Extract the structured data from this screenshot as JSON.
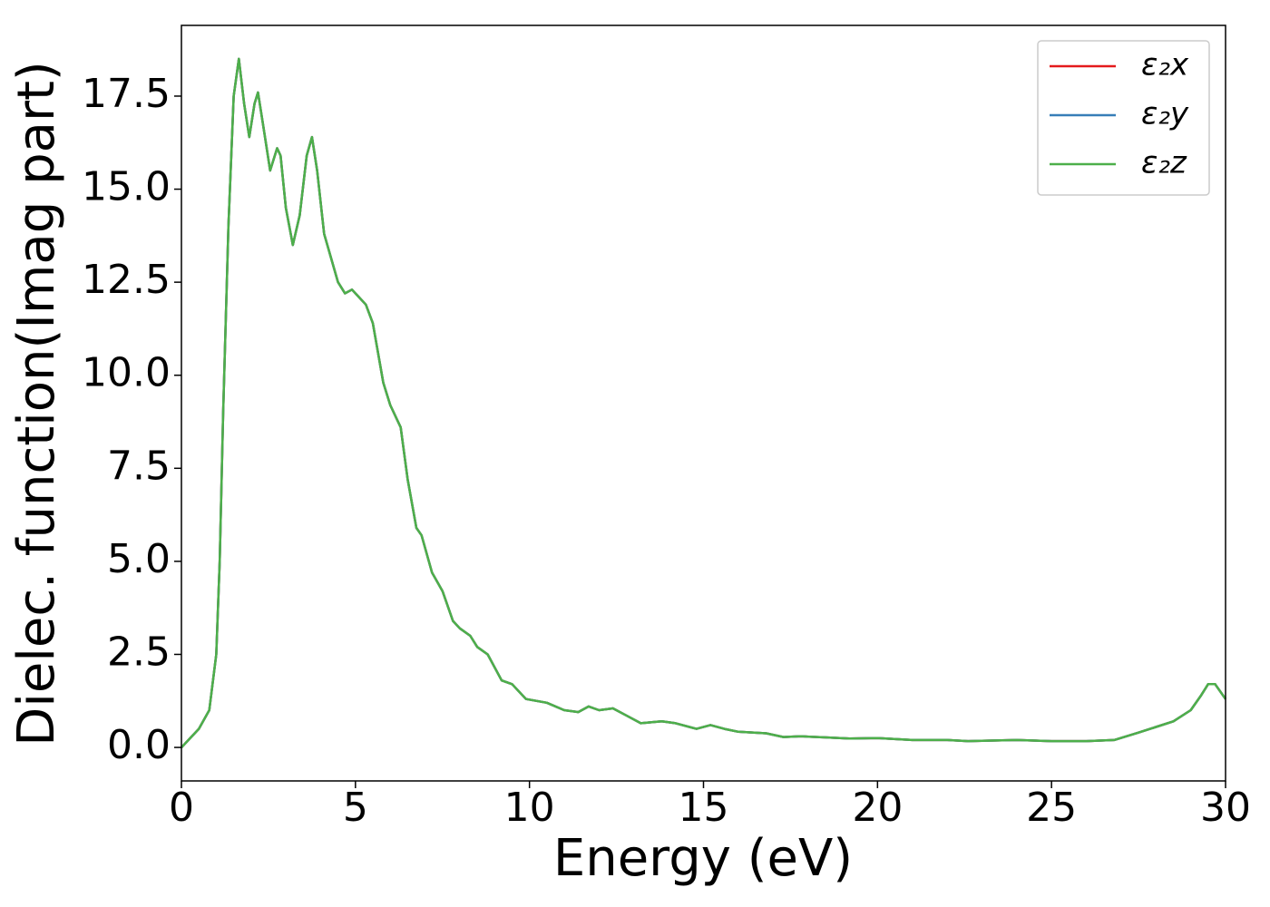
{
  "chart_data": {
    "type": "line",
    "xlabel": "Energy (eV)",
    "ylabel": "Dielec. function(Imag part)",
    "x": [
      0,
      0.5,
      0.8,
      1.0,
      1.1,
      1.2,
      1.35,
      1.5,
      1.65,
      1.8,
      1.95,
      2.1,
      2.2,
      2.35,
      2.55,
      2.75,
      2.85,
      3.0,
      3.2,
      3.4,
      3.6,
      3.75,
      3.9,
      4.1,
      4.5,
      4.7,
      4.9,
      5.1,
      5.3,
      5.5,
      5.8,
      6.0,
      6.3,
      6.5,
      6.75,
      6.9,
      7.2,
      7.5,
      7.8,
      8.0,
      8.3,
      8.5,
      8.8,
      9.2,
      9.5,
      9.9,
      10.5,
      11.0,
      11.4,
      11.7,
      12.0,
      12.4,
      12.8,
      13.2,
      13.8,
      14.2,
      14.8,
      15.2,
      15.6,
      16.0,
      16.8,
      17.3,
      17.8,
      18.5,
      19.2,
      20.0,
      21.0,
      22.0,
      22.6,
      23.0,
      24.0,
      25.0,
      26.0,
      26.8,
      27.5,
      28.0,
      28.5,
      29.0,
      29.3,
      29.5,
      29.7,
      30.0
    ],
    "series": [
      {
        "name": "ε₂x",
        "color": "#e41a1c",
        "values": [
          0,
          0.5,
          1.0,
          2.5,
          5,
          9,
          14,
          17.5,
          18.5,
          17.3,
          16.4,
          17.3,
          17.6,
          16.7,
          15.5,
          16.1,
          15.9,
          14.5,
          13.5,
          14.3,
          15.9,
          16.4,
          15.5,
          13.8,
          12.5,
          12.2,
          12.3,
          12.1,
          11.9,
          11.4,
          9.8,
          9.2,
          8.6,
          7.2,
          5.9,
          5.7,
          4.7,
          4.2,
          3.4,
          3.2,
          3.0,
          2.7,
          2.5,
          1.8,
          1.7,
          1.3,
          1.2,
          1.0,
          0.95,
          1.1,
          1.0,
          1.05,
          0.85,
          0.65,
          0.7,
          0.65,
          0.5,
          0.6,
          0.5,
          0.42,
          0.38,
          0.28,
          0.3,
          0.27,
          0.24,
          0.25,
          0.2,
          0.2,
          0.17,
          0.18,
          0.2,
          0.17,
          0.17,
          0.2,
          0.4,
          0.55,
          0.7,
          1.0,
          1.4,
          1.7,
          1.7,
          1.3
        ]
      },
      {
        "name": "ε₂y",
        "color": "#377eb8",
        "values": [
          0,
          0.5,
          1.0,
          2.5,
          5,
          9,
          14,
          17.5,
          18.5,
          17.3,
          16.4,
          17.3,
          17.6,
          16.7,
          15.5,
          16.1,
          15.9,
          14.5,
          13.5,
          14.3,
          15.9,
          16.4,
          15.5,
          13.8,
          12.5,
          12.2,
          12.3,
          12.1,
          11.9,
          11.4,
          9.8,
          9.2,
          8.6,
          7.2,
          5.9,
          5.7,
          4.7,
          4.2,
          3.4,
          3.2,
          3.0,
          2.7,
          2.5,
          1.8,
          1.7,
          1.3,
          1.2,
          1.0,
          0.95,
          1.1,
          1.0,
          1.05,
          0.85,
          0.65,
          0.7,
          0.65,
          0.5,
          0.6,
          0.5,
          0.42,
          0.38,
          0.28,
          0.3,
          0.27,
          0.24,
          0.25,
          0.2,
          0.2,
          0.17,
          0.18,
          0.2,
          0.17,
          0.17,
          0.2,
          0.4,
          0.55,
          0.7,
          1.0,
          1.4,
          1.7,
          1.7,
          1.3
        ]
      },
      {
        "name": "ε₂z",
        "color": "#4daf4a",
        "values": [
          0,
          0.5,
          1.0,
          2.5,
          5,
          9,
          14,
          17.5,
          18.5,
          17.3,
          16.4,
          17.3,
          17.6,
          16.7,
          15.5,
          16.1,
          15.9,
          14.5,
          13.5,
          14.3,
          15.9,
          16.4,
          15.5,
          13.8,
          12.5,
          12.2,
          12.3,
          12.1,
          11.9,
          11.4,
          9.8,
          9.2,
          8.6,
          7.2,
          5.9,
          5.7,
          4.7,
          4.2,
          3.4,
          3.2,
          3.0,
          2.7,
          2.5,
          1.8,
          1.7,
          1.3,
          1.2,
          1.0,
          0.95,
          1.1,
          1.0,
          1.05,
          0.85,
          0.65,
          0.7,
          0.65,
          0.5,
          0.6,
          0.5,
          0.42,
          0.38,
          0.28,
          0.3,
          0.27,
          0.24,
          0.25,
          0.2,
          0.2,
          0.17,
          0.18,
          0.2,
          0.17,
          0.17,
          0.2,
          0.4,
          0.55,
          0.7,
          1.0,
          1.4,
          1.7,
          1.7,
          1.3
        ]
      }
    ],
    "xlim": [
      0,
      30
    ],
    "xticks": [
      0,
      5,
      10,
      15,
      20,
      25,
      30
    ],
    "ylim": [
      -0.9,
      19.4
    ],
    "yticks": [
      {
        "value": 0,
        "label": "0.0"
      },
      2.5,
      {
        "value": 5,
        "label": "5.0"
      },
      7.5,
      {
        "value": 10,
        "label": "10.0"
      },
      12.5,
      {
        "value": 15,
        "label": "15.0"
      },
      17.5
    ],
    "legend": "upper right",
    "grid": false
  }
}
